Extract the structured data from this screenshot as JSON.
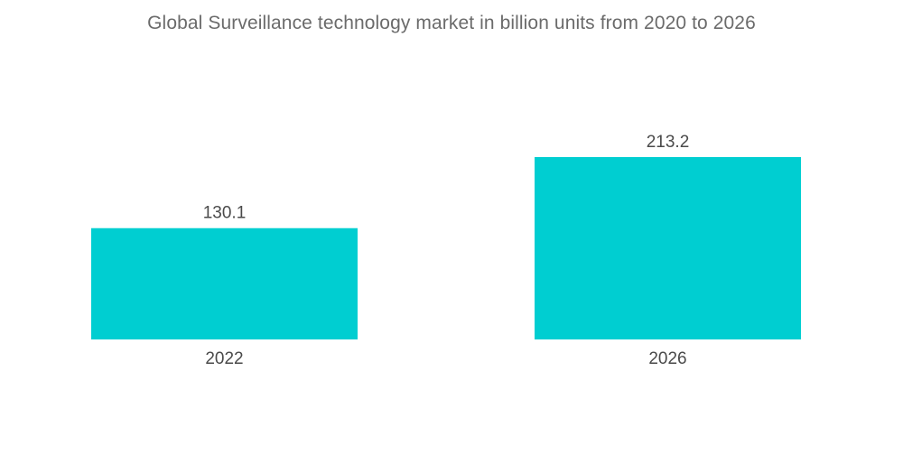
{
  "chart_data": {
    "type": "bar",
    "title": "Global Surveillance technology market in billion units from 2020 to 2026",
    "categories": [
      "2022",
      "2026"
    ],
    "values": [
      130.1,
      213.2
    ],
    "value_labels": [
      "130.1",
      "213.2"
    ],
    "xlabel": "",
    "ylabel": "",
    "ylim": [
      0,
      213.2
    ],
    "grid": false,
    "legend": "none",
    "colors": {
      "bar": "#00CED1",
      "text": "#4a4a4a",
      "title": "#6b6b6b"
    }
  }
}
